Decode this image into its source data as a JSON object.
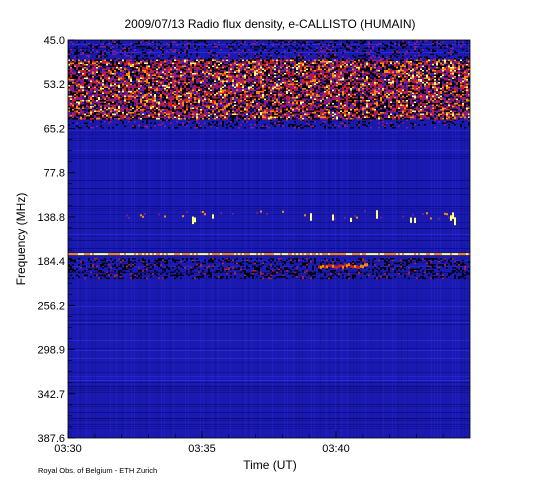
{
  "chart_data": {
    "type": "heatmap",
    "title": "2009/07/13  Radio flux density, e-CALLISTO (HUMAIN)",
    "xlabel": "Time (UT)",
    "ylabel": "Frequency (MHz)",
    "x_ticks": [
      "03:30",
      "03:35",
      "03:40"
    ],
    "y_ticks": [
      "45.0",
      "53.2",
      "65.2",
      "77.8",
      "138.8",
      "184.4",
      "256.2",
      "298.9",
      "342.7",
      "387.6"
    ],
    "x_range": [
      "03:30",
      "03:45"
    ],
    "y_range": [
      45.0,
      387.6
    ],
    "colormap": [
      "#000000",
      "#0a0a8c",
      "#2626dc",
      "#8a1a8a",
      "#d02020",
      "#ff8a00",
      "#ffff80"
    ],
    "features": [
      {
        "kind": "band",
        "freq_range": [
          45.0,
          65.2
        ],
        "description_level": "high intensity, broadband emission"
      },
      {
        "kind": "band",
        "freq_range": [
          138.8,
          145.0
        ],
        "description_level": "intermittent bursts"
      },
      {
        "kind": "line",
        "freq": 184.4,
        "description_level": "continuous narrowband line"
      }
    ]
  },
  "credit": "Royal Obs. of Belgium - ETH Zurich"
}
